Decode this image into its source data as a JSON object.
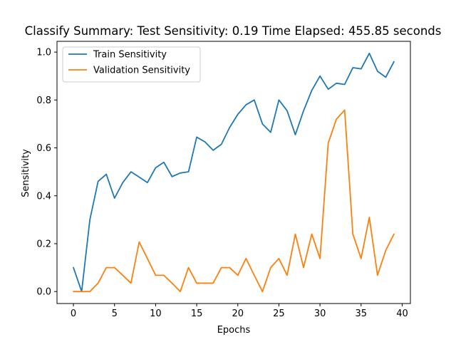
{
  "chart_data": {
    "type": "line",
    "title": "Classify Summary: Test Sensitivity: 0.19 Time Elapsed: 455.85 seconds",
    "xlabel": "Epochs",
    "ylabel": "Sensitivity",
    "xlim": [
      -2,
      41
    ],
    "ylim": [
      -0.05,
      1.045
    ],
    "xticks": [
      0,
      5,
      10,
      15,
      20,
      25,
      30,
      35,
      40
    ],
    "yticks": [
      0.0,
      0.2,
      0.4,
      0.6,
      0.8,
      1.0
    ],
    "ytick_labels": [
      "0.0",
      "0.2",
      "0.4",
      "0.6",
      "0.8",
      "1.0"
    ],
    "grid": false,
    "legend_position": "upper-left",
    "x": [
      0,
      1,
      2,
      3,
      4,
      5,
      6,
      7,
      8,
      9,
      10,
      11,
      12,
      13,
      14,
      15,
      16,
      17,
      18,
      19,
      20,
      21,
      22,
      23,
      24,
      25,
      26,
      27,
      28,
      29,
      30,
      31,
      32,
      33,
      34,
      35,
      36,
      37,
      38,
      39
    ],
    "series": [
      {
        "name": "Train Sensitivity",
        "color": "#1f77b4",
        "values": [
          0.1,
          0.0,
          0.3,
          0.46,
          0.49,
          0.39,
          0.455,
          0.5,
          0.478,
          0.455,
          0.517,
          0.54,
          0.48,
          0.495,
          0.5,
          0.645,
          0.625,
          0.59,
          0.615,
          0.685,
          0.74,
          0.78,
          0.8,
          0.7,
          0.665,
          0.8,
          0.755,
          0.655,
          0.755,
          0.84,
          0.9,
          0.845,
          0.87,
          0.865,
          0.935,
          0.93,
          0.995,
          0.92,
          0.895,
          0.96
        ]
      },
      {
        "name": "Validation Sensitivity",
        "color": "#ff7f0e",
        "values": [
          0.0,
          0.0,
          0.0,
          0.035,
          0.1,
          0.1,
          0.068,
          0.035,
          0.207,
          0.138,
          0.068,
          0.068,
          0.035,
          0.0,
          0.1,
          0.035,
          0.035,
          0.035,
          0.1,
          0.1,
          0.068,
          0.138,
          0.068,
          0.0,
          0.1,
          0.138,
          0.068,
          0.24,
          0.1,
          0.24,
          0.138,
          0.62,
          0.72,
          0.758,
          0.24,
          0.138,
          0.31,
          0.068,
          0.172,
          0.24
        ]
      }
    ]
  }
}
